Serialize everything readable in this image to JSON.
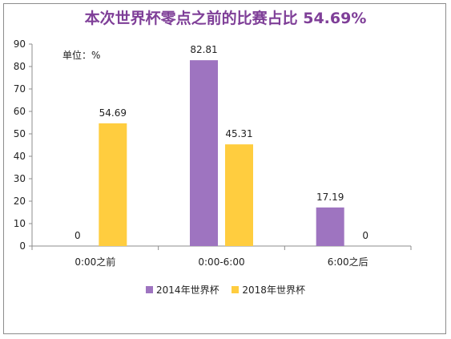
{
  "chart_data": {
    "type": "bar",
    "title": "本次世界杯零点之前的比赛占比 54.69%",
    "unit_label": "单位：%",
    "categories": [
      "0:00之前",
      "0:00-6:00",
      "6:00之后"
    ],
    "series": [
      {
        "name": "2014年世界杯",
        "values": [
          0,
          82.81,
          17.19
        ],
        "color": "#9e74c0"
      },
      {
        "name": "2018年世界杯",
        "values": [
          54.69,
          45.31,
          0
        ],
        "color": "#ffcd3f"
      }
    ],
    "ylim": [
      0,
      90
    ],
    "yticks": [
      0,
      10,
      20,
      30,
      40,
      50,
      60,
      70,
      80,
      90
    ],
    "data_labels": [
      [
        "0",
        "82.81",
        "17.19"
      ],
      [
        "54.69",
        "45.31",
        "0"
      ]
    ],
    "grid": false,
    "legend_position": "bottom"
  }
}
